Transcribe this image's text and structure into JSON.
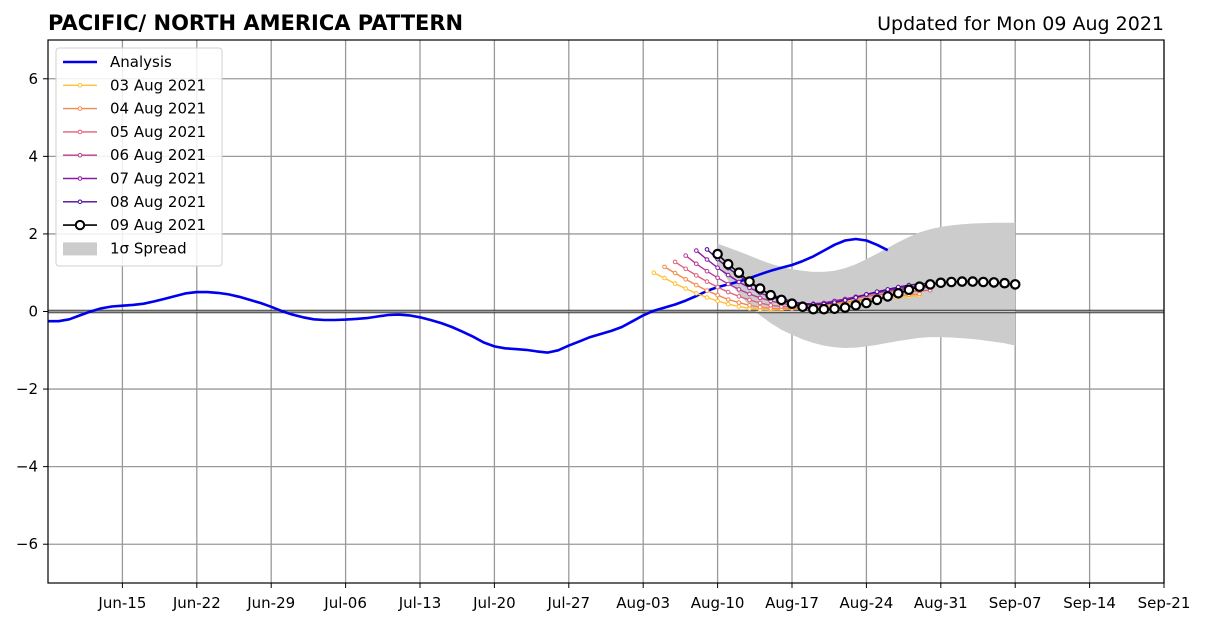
{
  "header": {
    "title": "PACIFIC/ NORTH AMERICA PATTERN",
    "updated": "Updated for Mon 09 Aug 2021"
  },
  "chart_data": {
    "type": "line",
    "title": "PACIFIC/ NORTH AMERICA PATTERN",
    "subtitle": "Updated for Mon 09 Aug 2021",
    "x_is_date": true,
    "xlim": [
      "2021-06-08",
      "2021-09-21"
    ],
    "ylim": [
      -7,
      7
    ],
    "x_ticks": [
      "2021-06-15",
      "2021-06-22",
      "2021-06-29",
      "2021-07-06",
      "2021-07-13",
      "2021-07-20",
      "2021-07-27",
      "2021-08-03",
      "2021-08-10",
      "2021-08-17",
      "2021-08-24",
      "2021-08-31",
      "2021-09-07",
      "2021-09-14",
      "2021-09-21"
    ],
    "x_tick_labels": [
      "Jun-15",
      "Jun-22",
      "Jun-29",
      "Jul-06",
      "Jul-13",
      "Jul-20",
      "Jul-27",
      "Aug-03",
      "Aug-10",
      "Aug-17",
      "Aug-24",
      "Aug-31",
      "Sep-07",
      "Sep-14",
      "Sep-21"
    ],
    "y_ticks": [
      -6,
      -4,
      -2,
      0,
      2,
      4,
      6
    ],
    "y_tick_labels": [
      "−6",
      "−4",
      "−2",
      "0",
      "2",
      "4",
      "6"
    ],
    "grid": true,
    "zero_line": 0,
    "legend": {
      "position": "upper-left",
      "entries": [
        "Analysis",
        "03 Aug 2021",
        "04 Aug 2021",
        "05 Aug 2021",
        "06 Aug 2021",
        "07 Aug 2021",
        "08 Aug 2021",
        "09 Aug 2021",
        "1σ Spread"
      ]
    },
    "analysis": {
      "name": "Analysis",
      "color": "#0000ee",
      "start": "2021-06-08",
      "values": [
        -0.25,
        -0.25,
        -0.2,
        -0.1,
        0.0,
        0.08,
        0.13,
        0.15,
        0.17,
        0.2,
        0.26,
        0.33,
        0.4,
        0.47,
        0.5,
        0.5,
        0.48,
        0.44,
        0.38,
        0.3,
        0.22,
        0.12,
        0.01,
        -0.08,
        -0.15,
        -0.2,
        -0.22,
        -0.22,
        -0.21,
        -0.19,
        -0.17,
        -0.13,
        -0.09,
        -0.08,
        -0.1,
        -0.15,
        -0.22,
        -0.3,
        -0.4,
        -0.52,
        -0.65,
        -0.8,
        -0.9,
        -0.95,
        -0.97,
        -0.99,
        -1.03,
        -1.06,
        -1.0,
        -0.88,
        -0.77,
        -0.66,
        -0.58,
        -0.5,
        -0.4,
        -0.25,
        -0.1,
        0.02,
        0.1,
        0.18,
        0.28,
        0.4,
        0.53,
        0.63,
        0.7,
        0.77,
        0.86,
        0.96,
        1.05,
        1.13,
        1.2,
        1.3,
        1.42,
        1.57,
        1.72,
        1.83,
        1.87,
        1.83,
        1.72,
        1.58
      ]
    },
    "forecasts": [
      {
        "name": "03 Aug 2021",
        "color": "#ffc130",
        "start": "2021-08-04",
        "values": [
          1.0,
          0.86,
          0.72,
          0.59,
          0.47,
          0.36,
          0.27,
          0.19,
          0.13,
          0.08,
          0.05,
          0.04,
          0.05,
          0.07,
          0.1,
          0.13,
          0.16,
          0.19,
          0.22,
          0.25,
          0.28,
          0.31,
          0.34,
          0.37,
          0.39,
          0.41
        ]
      },
      {
        "name": "04 Aug 2021",
        "color": "#f5884c",
        "start": "2021-08-05",
        "values": [
          1.15,
          0.99,
          0.83,
          0.68,
          0.54,
          0.42,
          0.31,
          0.23,
          0.16,
          0.11,
          0.08,
          0.07,
          0.08,
          0.1,
          0.13,
          0.17,
          0.21,
          0.24,
          0.28,
          0.32,
          0.35,
          0.38,
          0.41,
          0.43,
          0.45
        ]
      },
      {
        "name": "05 Aug 2021",
        "color": "#e0607a",
        "start": "2021-08-06",
        "values": [
          1.28,
          1.1,
          0.93,
          0.77,
          0.63,
          0.5,
          0.39,
          0.3,
          0.22,
          0.16,
          0.13,
          0.12,
          0.13,
          0.16,
          0.2,
          0.25,
          0.3,
          0.34,
          0.39,
          0.43,
          0.46,
          0.49,
          0.51,
          0.53,
          0.55
        ]
      },
      {
        "name": "06 Aug 2021",
        "color": "#b63b92",
        "start": "2021-08-07",
        "values": [
          1.44,
          1.23,
          1.04,
          0.87,
          0.71,
          0.57,
          0.45,
          0.35,
          0.27,
          0.21,
          0.17,
          0.16,
          0.18,
          0.22,
          0.27,
          0.32,
          0.38,
          0.43,
          0.48,
          0.52,
          0.56,
          0.59,
          0.61,
          0.63
        ]
      },
      {
        "name": "07 Aug 2021",
        "color": "#8a1aa3",
        "start": "2021-08-08",
        "values": [
          1.57,
          1.34,
          1.13,
          0.94,
          0.76,
          0.61,
          0.48,
          0.37,
          0.29,
          0.23,
          0.2,
          0.2,
          0.22,
          0.27,
          0.32,
          0.38,
          0.44,
          0.5,
          0.55,
          0.6,
          0.63,
          0.65,
          0.66
        ]
      },
      {
        "name": "08 Aug 2021",
        "color": "#4c0a96",
        "start": "2021-08-09",
        "values": [
          1.6,
          1.35,
          1.12,
          0.92,
          0.74,
          0.58,
          0.45,
          0.34,
          0.26,
          0.2,
          0.18,
          0.19,
          0.23,
          0.29,
          0.36,
          0.44,
          0.51,
          0.57,
          0.63,
          0.68,
          0.71,
          0.73
        ]
      }
    ],
    "latest": {
      "name": "09 Aug 2021",
      "color": "#000000",
      "start": "2021-08-10",
      "values": [
        1.48,
        1.22,
        1.0,
        0.77,
        0.59,
        0.42,
        0.3,
        0.2,
        0.12,
        0.06,
        0.06,
        0.07,
        0.1,
        0.16,
        0.22,
        0.3,
        0.39,
        0.47,
        0.56,
        0.64,
        0.7,
        0.74,
        0.76,
        0.77,
        0.77,
        0.76,
        0.75,
        0.73,
        0.7
      ]
    },
    "spread": {
      "name": "1σ Spread",
      "color": "#cccccc",
      "start": "2021-08-10",
      "upper": [
        1.75,
        1.65,
        1.55,
        1.44,
        1.33,
        1.23,
        1.15,
        1.09,
        1.05,
        1.02,
        1.02,
        1.05,
        1.12,
        1.22,
        1.35,
        1.49,
        1.64,
        1.79,
        1.92,
        2.04,
        2.12,
        2.18,
        2.22,
        2.25,
        2.27,
        2.28,
        2.29,
        2.29,
        2.29
      ],
      "lower": [
        1.21,
        0.8,
        0.45,
        0.15,
        -0.1,
        -0.3,
        -0.47,
        -0.6,
        -0.72,
        -0.81,
        -0.88,
        -0.92,
        -0.94,
        -0.93,
        -0.9,
        -0.86,
        -0.81,
        -0.76,
        -0.72,
        -0.68,
        -0.66,
        -0.66,
        -0.67,
        -0.69,
        -0.71,
        -0.74,
        -0.78,
        -0.82,
        -0.88
      ]
    }
  }
}
